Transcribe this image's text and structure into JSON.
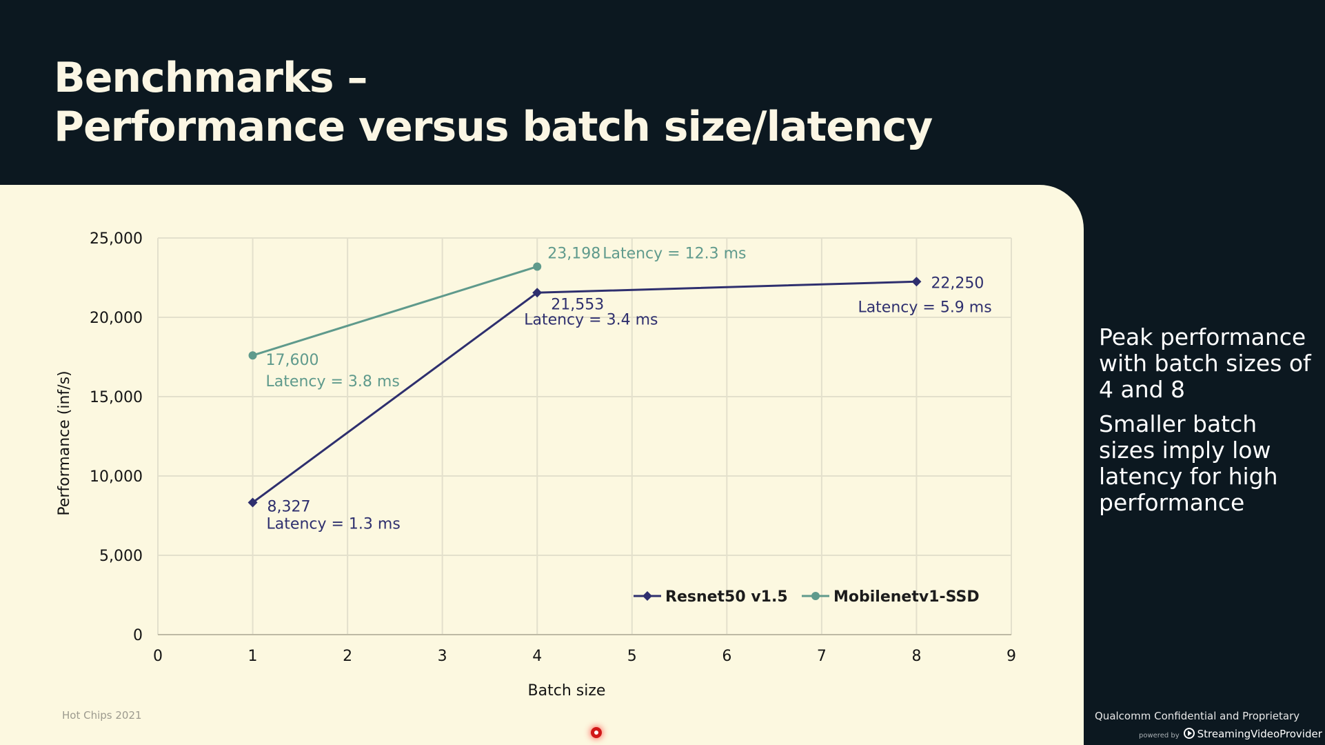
{
  "slide": {
    "title_line1": "Benchmarks –",
    "title_line2": "Performance versus batch size/latency",
    "side_text": [
      "Peak performance with batch sizes of 4 and 8",
      "Smaller batch sizes imply low latency for high performance"
    ],
    "footer_left": "Hot Chips 2021",
    "footer_right": "Qualcomm Confidential and Proprietary",
    "watermark_prefix": "powered by",
    "watermark_brand": "StreamingVideoProvider"
  },
  "colors": {
    "background": "#0c1820",
    "panel": "#fcf8e0",
    "resnet": "#2e2f6e",
    "mobilenet": "#5f9a8c",
    "grid": "#e3e0cc"
  },
  "chart_data": {
    "type": "line",
    "title": "",
    "xlabel": "Batch size",
    "ylabel": "Performance (inf/s)",
    "xlim": [
      0,
      9
    ],
    "ylim": [
      0,
      25000
    ],
    "x_ticks": [
      "0",
      "1",
      "2",
      "3",
      "4",
      "5",
      "6",
      "7",
      "8",
      "9"
    ],
    "y_ticks": [
      "0",
      "5,000",
      "10,000",
      "15,000",
      "20,000",
      "25,000"
    ],
    "grid": true,
    "legend_position": "bottom-right",
    "series": [
      {
        "name": "Resnet50 v1.5",
        "marker": "diamond",
        "points": [
          {
            "x": 1,
            "y": 8327,
            "label": "8,327",
            "latency": "Latency = 1.3 ms"
          },
          {
            "x": 4,
            "y": 21553,
            "label": "21,553",
            "latency": "Latency = 3.4 ms"
          },
          {
            "x": 8,
            "y": 22250,
            "label": "22,250",
            "latency": "Latency = 5.9 ms"
          }
        ]
      },
      {
        "name": "Mobilenetv1-SSD",
        "marker": "circle",
        "points": [
          {
            "x": 1,
            "y": 17600,
            "label": "17,600",
            "latency": "Latency = 3.8 ms"
          },
          {
            "x": 4,
            "y": 23198,
            "label": "23,198",
            "latency": "Latency = 12.3 ms"
          }
        ]
      }
    ]
  }
}
